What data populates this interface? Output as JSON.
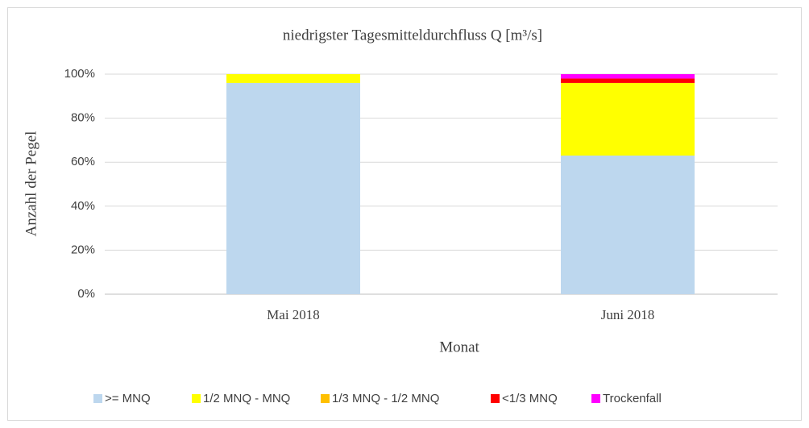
{
  "chart_data": {
    "type": "stacked_bar",
    "title": "niedrigster Tagesmitteldurchfluss Q [m³/s]",
    "x_label": "Monat",
    "y_label": "Anzahl der Pegel",
    "categories": [
      "Mai 2018",
      "Juni 2018"
    ],
    "series": [
      {
        "name": ">= MNQ",
        "color": "#bdd7ee",
        "values": [
          96,
          63
        ]
      },
      {
        "name": "1/2 MNQ - MNQ",
        "color": "#ffff00",
        "values": [
          4,
          33
        ]
      },
      {
        "name": "1/3 MNQ - 1/2 MNQ",
        "color": "#ffc000",
        "values": [
          0,
          0
        ]
      },
      {
        "name": "<1/3 MNQ",
        "color": "#ff0000",
        "values": [
          0,
          2
        ]
      },
      {
        "name": "Trockenfall",
        "color": "#ff00ff",
        "values": [
          0,
          2
        ]
      }
    ],
    "ylim": [
      0,
      100
    ],
    "yticks": [
      {
        "value": 0,
        "label": "0%"
      },
      {
        "value": 20,
        "label": "20%"
      },
      {
        "value": 40,
        "label": "40%"
      },
      {
        "value": 60,
        "label": "60%"
      },
      {
        "value": 80,
        "label": "80%"
      },
      {
        "value": 100,
        "label": "100%"
      }
    ],
    "grid": true,
    "legend": "bottom"
  }
}
